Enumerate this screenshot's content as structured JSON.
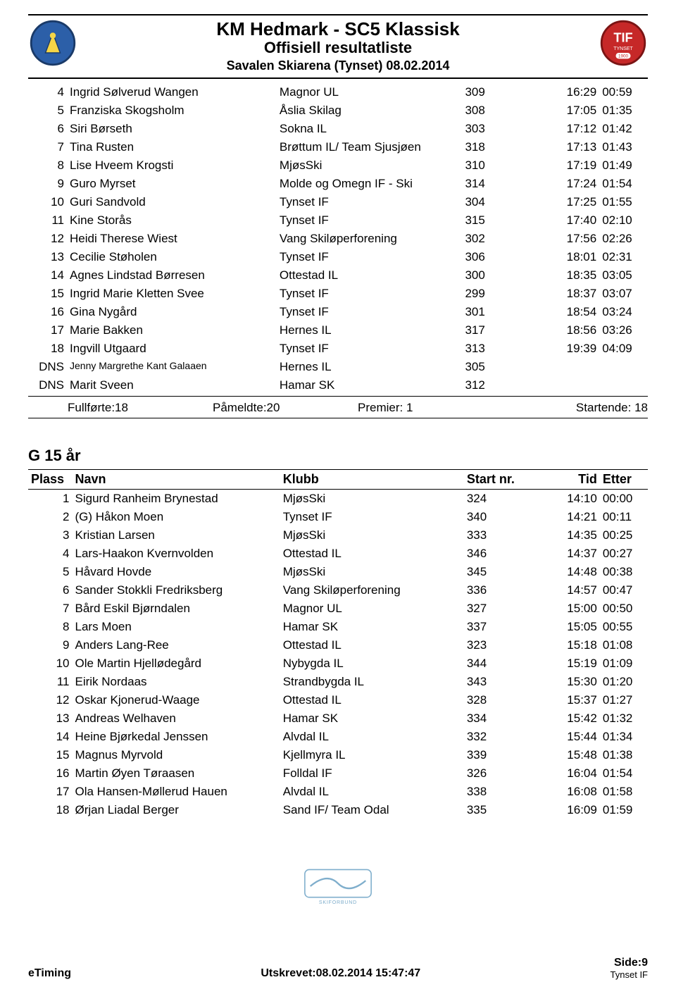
{
  "header": {
    "title_main": "KM Hedmark - SC5 Klassisk",
    "title_sub": "Offisiell resultatliste",
    "title_loc": "Savalen Skiarena (Tynset) 08.02.2014"
  },
  "table1": {
    "rows": [
      {
        "plass": "4",
        "navn": "Ingrid Sølverud Wangen",
        "klubb": "Magnor UL",
        "start": "309",
        "tid": "16:29",
        "etter": "00:59"
      },
      {
        "plass": "5",
        "navn": "Franziska Skogsholm",
        "klubb": "Åslia Skilag",
        "start": "308",
        "tid": "17:05",
        "etter": "01:35"
      },
      {
        "plass": "6",
        "navn": "Siri Børseth",
        "klubb": "Sokna IL",
        "start": "303",
        "tid": "17:12",
        "etter": "01:42"
      },
      {
        "plass": "7",
        "navn": "Tina Rusten",
        "klubb": "Brøttum IL/ Team Sjusjøen",
        "start": "318",
        "tid": "17:13",
        "etter": "01:43"
      },
      {
        "plass": "8",
        "navn": "Lise Hveem Krogsti",
        "klubb": "MjøsSki",
        "start": "310",
        "tid": "17:19",
        "etter": "01:49"
      },
      {
        "plass": "9",
        "navn": "Guro Myrset",
        "klubb": "Molde og Omegn IF - Ski",
        "start": "314",
        "tid": "17:24",
        "etter": "01:54"
      },
      {
        "plass": "10",
        "navn": "Guri Sandvold",
        "klubb": "Tynset IF",
        "start": "304",
        "tid": "17:25",
        "etter": "01:55"
      },
      {
        "plass": "11",
        "navn": "Kine Storås",
        "klubb": "Tynset IF",
        "start": "315",
        "tid": "17:40",
        "etter": "02:10"
      },
      {
        "plass": "12",
        "navn": "Heidi Therese Wiest",
        "klubb": "Vang Skiløperforening",
        "start": "302",
        "tid": "17:56",
        "etter": "02:26"
      },
      {
        "plass": "13",
        "navn": "Cecilie Støholen",
        "klubb": "Tynset IF",
        "start": "306",
        "tid": "18:01",
        "etter": "02:31"
      },
      {
        "plass": "14",
        "navn": "Agnes Lindstad Børresen",
        "klubb": "Ottestad IL",
        "start": "300",
        "tid": "18:35",
        "etter": "03:05"
      },
      {
        "plass": "15",
        "navn": "Ingrid Marie Kletten Svee",
        "klubb": "Tynset IF",
        "start": "299",
        "tid": "18:37",
        "etter": "03:07"
      },
      {
        "plass": "16",
        "navn": "Gina Nygård",
        "klubb": "Tynset IF",
        "start": "301",
        "tid": "18:54",
        "etter": "03:24"
      },
      {
        "plass": "17",
        "navn": "Marie Bakken",
        "klubb": "Hernes IL",
        "start": "317",
        "tid": "18:56",
        "etter": "03:26"
      },
      {
        "plass": "18",
        "navn": "Ingvill Utgaard",
        "klubb": "Tynset IF",
        "start": "313",
        "tid": "19:39",
        "etter": "04:09"
      },
      {
        "plass": "DNS",
        "navn": "Jenny Margrethe Kant Galaaen",
        "small": true,
        "klubb": "Hernes IL",
        "start": "305",
        "tid": "",
        "etter": ""
      },
      {
        "plass": "DNS",
        "navn": "Marit Sveen",
        "klubb": "Hamar SK",
        "start": "312",
        "tid": "",
        "etter": ""
      }
    ],
    "summary": {
      "fullforte": "Fullførte:18",
      "pameldte": "Påmeldte:20",
      "premier": "Premier: 1",
      "startende": "Startende: 18"
    }
  },
  "category2": {
    "title": "G 15 år",
    "header": {
      "plass": "Plass",
      "navn": "Navn",
      "klubb": "Klubb",
      "start": "Start nr.",
      "tid": "Tid",
      "etter": "Etter"
    },
    "rows": [
      {
        "plass": "1",
        "navn": "Sigurd Ranheim Brynestad",
        "klubb": "MjøsSki",
        "start": "324",
        "tid": "14:10",
        "etter": "00:00"
      },
      {
        "plass": "2",
        "navn": "(G) Håkon Moen",
        "klubb": "Tynset IF",
        "start": "340",
        "tid": "14:21",
        "etter": "00:11"
      },
      {
        "plass": "3",
        "navn": "Kristian Larsen",
        "klubb": "MjøsSki",
        "start": "333",
        "tid": "14:35",
        "etter": "00:25"
      },
      {
        "plass": "4",
        "navn": "Lars-Haakon Kvernvolden",
        "klubb": "Ottestad IL",
        "start": "346",
        "tid": "14:37",
        "etter": "00:27"
      },
      {
        "plass": "5",
        "navn": "Håvard Hovde",
        "klubb": "MjøsSki",
        "start": "345",
        "tid": "14:48",
        "etter": "00:38"
      },
      {
        "plass": "6",
        "navn": "Sander Stokkli Fredriksberg",
        "klubb": "Vang Skiløperforening",
        "start": "336",
        "tid": "14:57",
        "etter": "00:47"
      },
      {
        "plass": "7",
        "navn": "Bård Eskil Bjørndalen",
        "klubb": "Magnor UL",
        "start": "327",
        "tid": "15:00",
        "etter": "00:50"
      },
      {
        "plass": "8",
        "navn": "Lars Moen",
        "klubb": "Hamar SK",
        "start": "337",
        "tid": "15:05",
        "etter": "00:55"
      },
      {
        "plass": "9",
        "navn": "Anders Lang-Ree",
        "klubb": "Ottestad IL",
        "start": "323",
        "tid": "15:18",
        "etter": "01:08"
      },
      {
        "plass": "10",
        "navn": "Ole Martin Hjellødegård",
        "klubb": "Nybygda IL",
        "start": "344",
        "tid": "15:19",
        "etter": "01:09"
      },
      {
        "plass": "11",
        "navn": "Eirik Nordaas",
        "klubb": "Strandbygda IL",
        "start": "343",
        "tid": "15:30",
        "etter": "01:20"
      },
      {
        "plass": "12",
        "navn": "Oskar Kjonerud-Waage",
        "klubb": "Ottestad IL",
        "start": "328",
        "tid": "15:37",
        "etter": "01:27"
      },
      {
        "plass": "13",
        "navn": "Andreas Welhaven",
        "klubb": "Hamar SK",
        "start": "334",
        "tid": "15:42",
        "etter": "01:32"
      },
      {
        "plass": "14",
        "navn": "Heine Bjørkedal Jenssen",
        "klubb": "Alvdal IL",
        "start": "332",
        "tid": "15:44",
        "etter": "01:34"
      },
      {
        "plass": "15",
        "navn": "Magnus Myrvold",
        "klubb": "Kjellmyra IL",
        "start": "339",
        "tid": "15:48",
        "etter": "01:38"
      },
      {
        "plass": "16",
        "navn": "Martin Øyen Tøraasen",
        "klubb": "Folldal IF",
        "start": "326",
        "tid": "16:04",
        "etter": "01:54"
      },
      {
        "plass": "17",
        "navn": "Ola Hansen-Møllerud Hauen",
        "klubb": "Alvdal IL",
        "start": "338",
        "tid": "16:08",
        "etter": "01:58"
      },
      {
        "plass": "18",
        "navn": "Ørjan Liadal Berger",
        "klubb": "Sand IF/ Team Odal",
        "start": "335",
        "tid": "16:09",
        "etter": "01:59"
      }
    ]
  },
  "footer": {
    "left": "eTiming",
    "center": "Utskrevet:08.02.2014 15:47:47",
    "right": "Side:9",
    "right_sub": "Tynset IF"
  }
}
